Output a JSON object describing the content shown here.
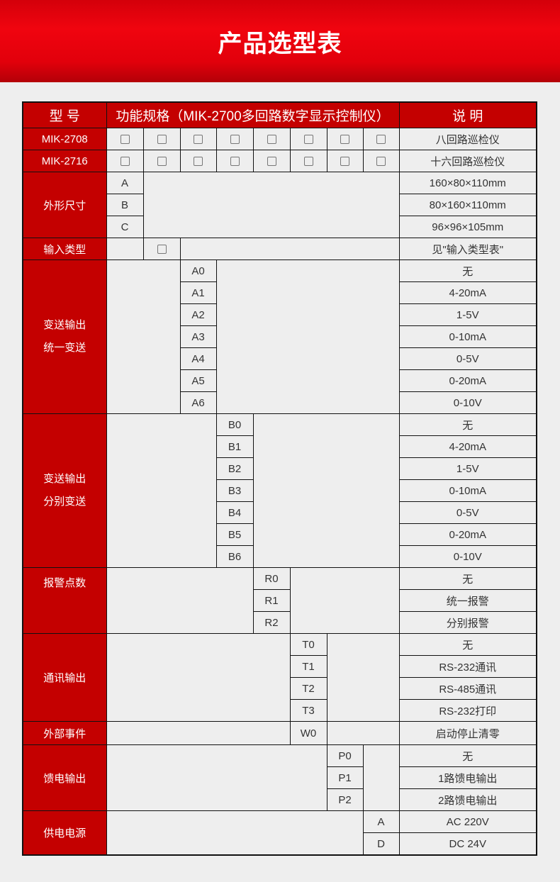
{
  "title": "产品选型表",
  "header": {
    "model": "型 号",
    "spec": "功能规格（MIK-2700多回路数字显示控制仪）",
    "desc": "说 明"
  },
  "models": [
    {
      "label": "MIK-2708",
      "desc": "八回路巡检仪"
    },
    {
      "label": "MIK-2716",
      "desc": "十六回路巡检仪"
    }
  ],
  "size": {
    "label": "外形尺寸",
    "options": [
      {
        "code": "A",
        "desc": "160×80×110mm"
      },
      {
        "code": "B",
        "desc": "80×160×110mm"
      },
      {
        "code": "C",
        "desc": "96×96×105mm"
      }
    ]
  },
  "input": {
    "label": "输入类型",
    "desc": "见\"输入类型表\""
  },
  "unified": {
    "line1": "变送输出",
    "line2": "统一变送",
    "options": [
      {
        "code": "A0",
        "desc": "无"
      },
      {
        "code": "A1",
        "desc": "4-20mA"
      },
      {
        "code": "A2",
        "desc": "1-5V"
      },
      {
        "code": "A3",
        "desc": "0-10mA"
      },
      {
        "code": "A4",
        "desc": "0-5V"
      },
      {
        "code": "A5",
        "desc": "0-20mA"
      },
      {
        "code": "A6",
        "desc": "0-10V"
      }
    ]
  },
  "separate": {
    "line1": "变送输出",
    "line2": "分别变送",
    "options": [
      {
        "code": "B0",
        "desc": "无"
      },
      {
        "code": "B1",
        "desc": "4-20mA"
      },
      {
        "code": "B2",
        "desc": "1-5V"
      },
      {
        "code": "B3",
        "desc": "0-10mA"
      },
      {
        "code": "B4",
        "desc": "0-5V"
      },
      {
        "code": "B5",
        "desc": "0-20mA"
      },
      {
        "code": "B6",
        "desc": "0-10V"
      }
    ]
  },
  "alarm": {
    "label": "报警点数",
    "options": [
      {
        "code": "R0",
        "desc": "无"
      },
      {
        "code": "R1",
        "desc": "统一报警"
      },
      {
        "code": "R2",
        "desc": "分别报警"
      }
    ]
  },
  "comm": {
    "label": "通讯输出",
    "options": [
      {
        "code": "T0",
        "desc": "无"
      },
      {
        "code": "T1",
        "desc": "RS-232通讯"
      },
      {
        "code": "T2",
        "desc": "RS-485通讯"
      },
      {
        "code": "T3",
        "desc": "RS-232打印"
      }
    ]
  },
  "event": {
    "label": "外部事件",
    "code": "W0",
    "desc": "启动停止清零"
  },
  "feed": {
    "label": "馈电输出",
    "options": [
      {
        "code": "P0",
        "desc": "无"
      },
      {
        "code": "P1",
        "desc": "1路馈电输出"
      },
      {
        "code": "P2",
        "desc": "2路馈电输出"
      }
    ]
  },
  "power": {
    "label": "供电电源",
    "options": [
      {
        "code": "A",
        "desc": "AC 220V"
      },
      {
        "code": "D",
        "desc": "DC 24V"
      }
    ]
  },
  "colors": {
    "header_red": "#c40000",
    "banner_red": "#f0040f",
    "background": "#eeeeee"
  },
  "icons": {
    "checkbox": "checkbox-icon"
  }
}
